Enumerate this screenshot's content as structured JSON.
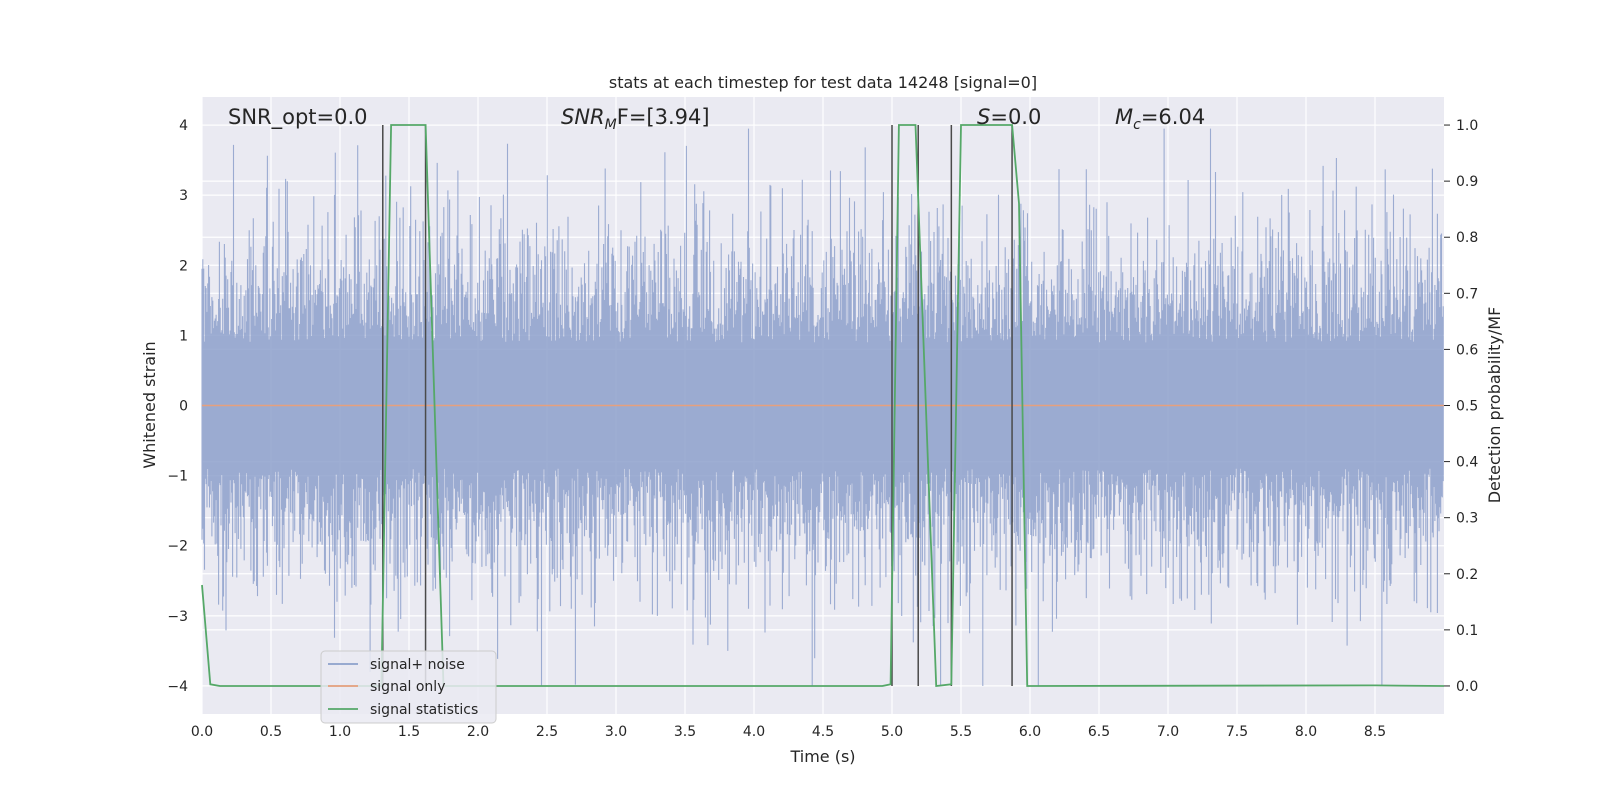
{
  "chart_data": {
    "type": "line",
    "title": "stats at each timestep for test data 14248 [signal=0]",
    "xlabel": "Time (s)",
    "ylabel_left": "Whitened strain",
    "ylabel_right": "Detection probability/MF",
    "xlim": [
      0,
      9.0
    ],
    "ylim_left": [
      -4.4,
      4.4
    ],
    "ylim_right": [
      -0.05,
      1.05
    ],
    "x_ticks": [
      "0.0",
      "0.5",
      "1.0",
      "1.5",
      "2.0",
      "2.5",
      "3.0",
      "3.5",
      "4.0",
      "4.5",
      "5.0",
      "5.5",
      "6.0",
      "6.5",
      "7.0",
      "7.5",
      "8.0",
      "8.5"
    ],
    "y_ticks_left": [
      "4",
      "3",
      "2",
      "1",
      "0",
      "−1",
      "−2",
      "−3",
      "−4"
    ],
    "y_ticks_right": [
      "1.0",
      "0.9",
      "0.8",
      "0.7",
      "0.6",
      "0.5",
      "0.4",
      "0.3",
      "0.2",
      "0.1",
      "0.0"
    ],
    "annotations": {
      "snr_opt": "SNR_opt=0.0",
      "snr_mf_base": "SNR",
      "snr_mf_sub": "M",
      "snr_mf_rest": "F=[3.94]",
      "s_label": "S",
      "s_value": "=0.0",
      "mc_base": "M",
      "mc_sub": "c",
      "mc_value": "=6.04"
    },
    "series": [
      {
        "name": "signal+ noise",
        "color": "#8da0cb",
        "axis": "left",
        "noise_envelope": {
          "typical_low": -1.6,
          "typical_high": 1.6,
          "peak_low": -4.0,
          "peak_high": 3.95,
          "duration": 9.0
        }
      },
      {
        "name": "signal only",
        "color": "#e5a07e",
        "axis": "left",
        "x": [
          0,
          9.0
        ],
        "y": [
          0,
          0
        ]
      },
      {
        "name": "signal statistics",
        "color": "#55a868",
        "axis": "right",
        "x": [
          0,
          0.06,
          0.13,
          1.3,
          1.37,
          1.62,
          1.75,
          4.93,
          4.99,
          5.05,
          5.17,
          5.32,
          5.43,
          5.5,
          5.87,
          5.92,
          5.98,
          8.5,
          9.0
        ],
        "y": [
          0.18,
          0.003,
          0.0,
          0.0,
          1.0,
          1.0,
          0.0,
          0.0,
          0.003,
          1.0,
          1.0,
          0.0,
          0.003,
          1.0,
          1.0,
          0.86,
          0.0,
          0.001,
          0.0
        ]
      }
    ],
    "vertical_markers": {
      "color": "#4a4a4a",
      "x": [
        1.31,
        1.62,
        5.0,
        5.19,
        5.43,
        5.87
      ],
      "y_top": 1.0,
      "y_bottom": 0.0
    },
    "legend": {
      "position": "lower-left"
    }
  }
}
